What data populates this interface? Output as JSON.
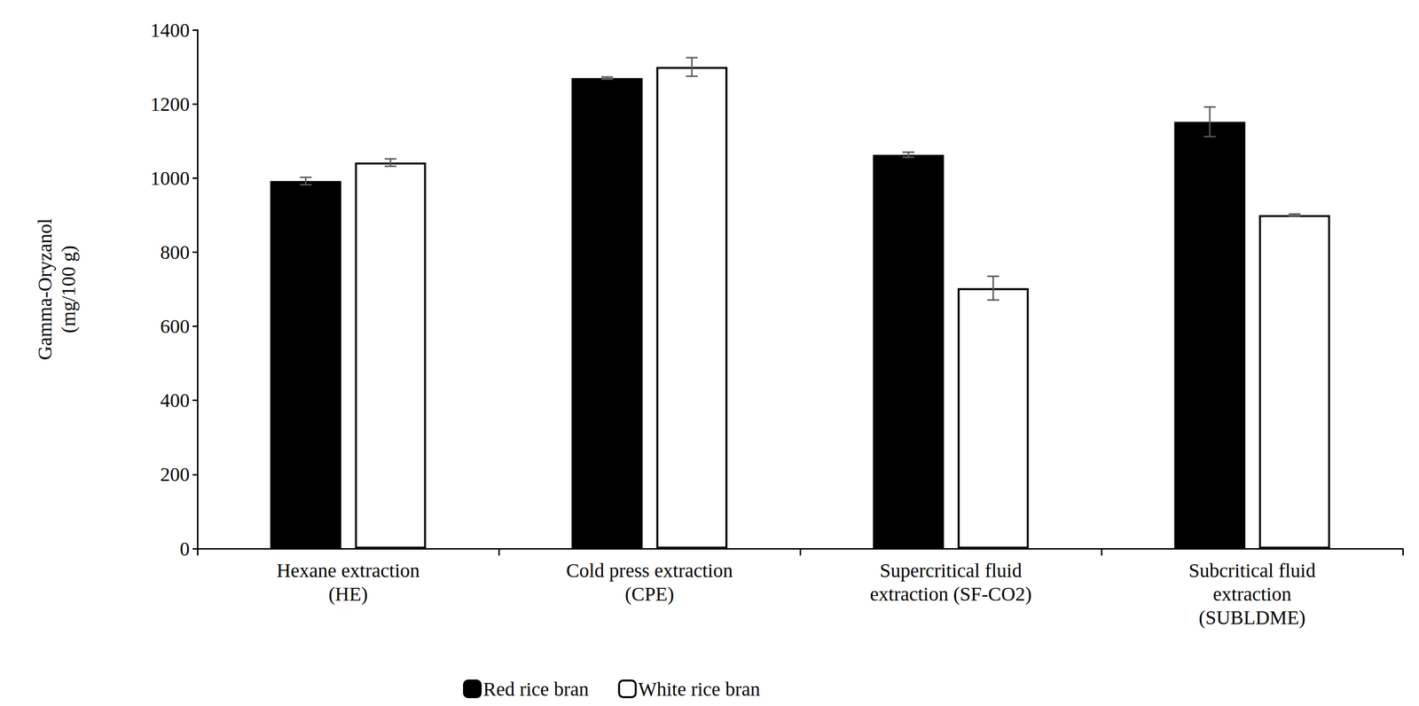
{
  "chart_data": {
    "type": "bar",
    "y_label": "Gamma-Oryzanol\n(mg/100 g)",
    "categories": [
      "Hexane extraction\n(HE)",
      "Cold press extraction\n(CPE)",
      "Supercritical fluid\nextraction (SF-CO2)",
      "Subcritical fluid\nextraction\n(SUBLDME)"
    ],
    "series": [
      {
        "name": "Red rice bran",
        "color": "#000000",
        "values": [
          992,
          1270,
          1063,
          1152
        ],
        "errors": [
          10,
          3,
          7,
          40
        ]
      },
      {
        "name": "White rice bran",
        "color": "#ffffff",
        "values": [
          1042,
          1300,
          703,
          900
        ],
        "errors": [
          10,
          25,
          32,
          3
        ]
      }
    ],
    "ylim": [
      0,
      1400
    ],
    "yticks": [
      0,
      200,
      400,
      600,
      800,
      1000,
      1200,
      1400
    ],
    "grid": false,
    "legend": "bottom"
  }
}
